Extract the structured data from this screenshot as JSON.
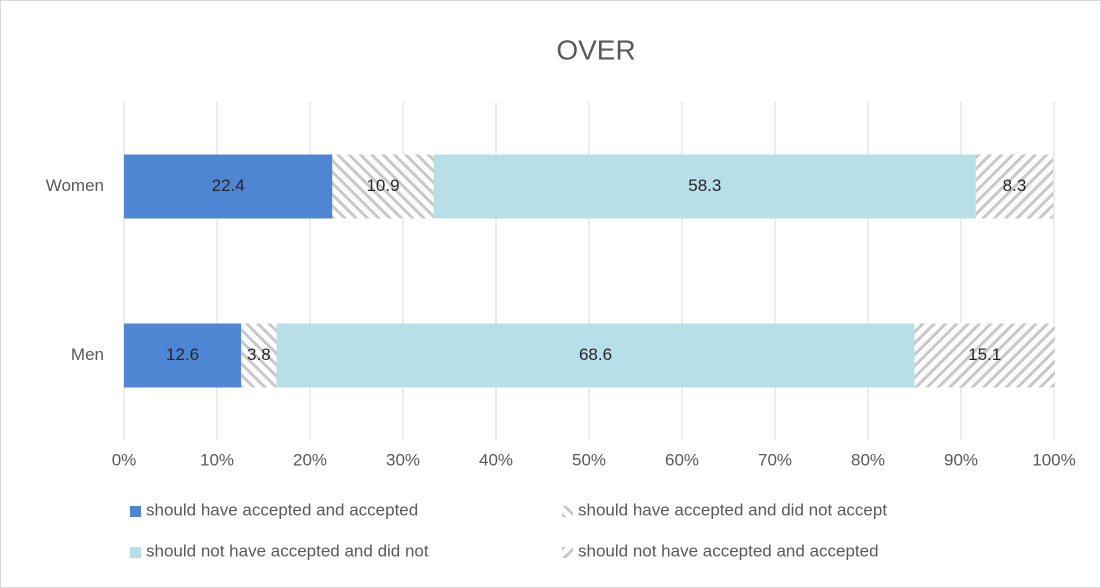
{
  "chart_data": {
    "type": "stacked-bar-horizontal",
    "title": "OVER",
    "categories": [
      "Women",
      "Men"
    ],
    "series": [
      {
        "name": "should have accepted and accepted",
        "color": "#4f86d3",
        "values": [
          22.4,
          12.6
        ]
      },
      {
        "name": "should have accepted and did not accept",
        "color": "#c8c8c8",
        "pattern": "hatch-back",
        "values": [
          10.9,
          3.8
        ]
      },
      {
        "name": "should not have accepted and did not",
        "color": "#b7dfe8",
        "values": [
          58.3,
          68.6
        ]
      },
      {
        "name": "should not have accepted and accepted",
        "color": "#c8c8c8",
        "pattern": "hatch-forward",
        "values": [
          8.3,
          15.1
        ]
      }
    ],
    "xlim": [
      0,
      100
    ],
    "xticks": [
      {
        "value": 0,
        "label": "0%"
      },
      {
        "value": 10,
        "label": "10%"
      },
      {
        "value": 20,
        "label": "20%"
      },
      {
        "value": 30,
        "label": "30%"
      },
      {
        "value": 40,
        "label": "40%"
      },
      {
        "value": 50,
        "label": "50%"
      },
      {
        "value": 60,
        "label": "60%"
      },
      {
        "value": 70,
        "label": "70%"
      },
      {
        "value": 80,
        "label": "80%"
      },
      {
        "value": 90,
        "label": "90%"
      },
      {
        "value": 100,
        "label": "100%"
      }
    ],
    "grid": true,
    "legend": "bottom"
  }
}
